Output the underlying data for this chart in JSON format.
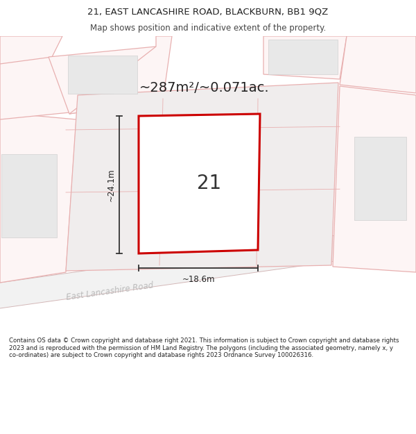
{
  "title": "21, EAST LANCASHIRE ROAD, BLACKBURN, BB1 9QZ",
  "subtitle": "Map shows position and indicative extent of the property.",
  "area_label": "~287m²/~0.071ac.",
  "plot_number": "21",
  "dim_width": "~18.6m",
  "dim_height": "~24.1m",
  "footer": "Contains OS data © Crown copyright and database right 2021. This information is subject to Crown copyright and database rights 2023 and is reproduced with the permission of HM Land Registry. The polygons (including the associated geometry, namely x, y co-ordinates) are subject to Crown copyright and database rights 2023 Ordnance Survey 100026316.",
  "title_fontsize": 9.5,
  "subtitle_fontsize": 8.5,
  "area_fontsize": 14,
  "plot_num_fontsize": 20,
  "dim_fontsize": 8.5,
  "footer_fontsize": 6.2,
  "bg_color": "#ffffff",
  "road_fill": "#f2f2f2",
  "road_edge": "#d4b8b8",
  "pink_fill": "#fdf5f5",
  "pink_edge": "#e8b0b0",
  "building_fill": "#e8e8e8",
  "building_edge": "#d0d0d0",
  "center_fill": "#f0eded",
  "red_border": "#cc0000",
  "dim_color": "#333333",
  "text_color": "#222222",
  "road_text_color": "#bbbbbb"
}
